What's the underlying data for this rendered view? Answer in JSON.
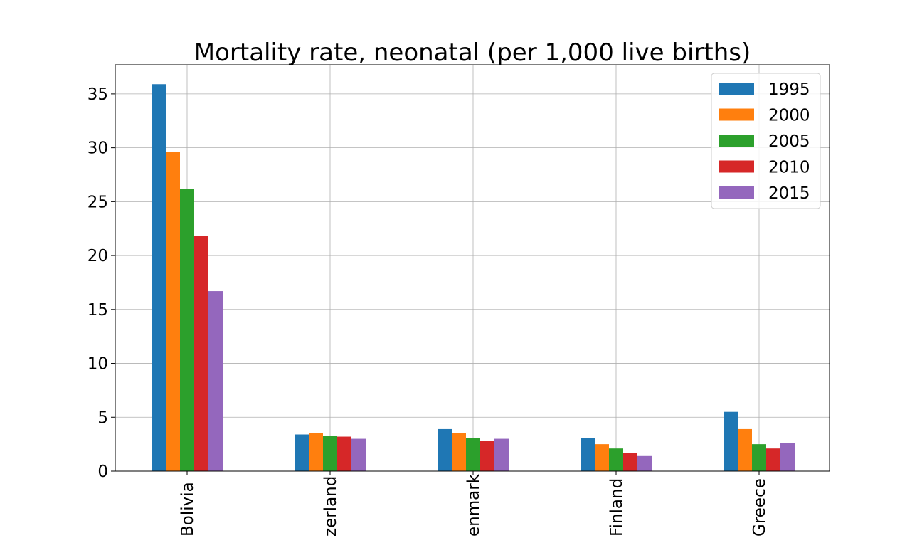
{
  "chart_data": {
    "type": "bar",
    "title": "Mortality rate, neonatal (per 1,000 live births)",
    "xlabel": "",
    "ylabel": "",
    "categories": [
      "Bolivia",
      "Switzerland",
      "Denmark",
      "Finland",
      "Greece"
    ],
    "category_labels_visible": [
      "Bolivia",
      "zerland",
      "enmark",
      "Finland",
      "Greece"
    ],
    "series": [
      {
        "name": "1995",
        "color": "#1f77b4",
        "values": [
          35.9,
          3.4,
          3.9,
          3.1,
          5.5
        ]
      },
      {
        "name": "2000",
        "color": "#ff7f0e",
        "values": [
          29.6,
          3.5,
          3.5,
          2.5,
          3.9
        ]
      },
      {
        "name": "2005",
        "color": "#2ca02c",
        "values": [
          26.2,
          3.3,
          3.1,
          2.1,
          2.5
        ]
      },
      {
        "name": "2010",
        "color": "#d62728",
        "values": [
          21.8,
          3.2,
          2.8,
          1.7,
          2.1
        ]
      },
      {
        "name": "2015",
        "color": "#9467bd",
        "values": [
          16.7,
          3.0,
          3.0,
          1.4,
          2.6
        ]
      }
    ],
    "ylim": [
      0,
      37.7
    ],
    "yticks": [
      0,
      5,
      10,
      15,
      20,
      25,
      30,
      35
    ],
    "grid": true,
    "legend_position": "top-right"
  }
}
